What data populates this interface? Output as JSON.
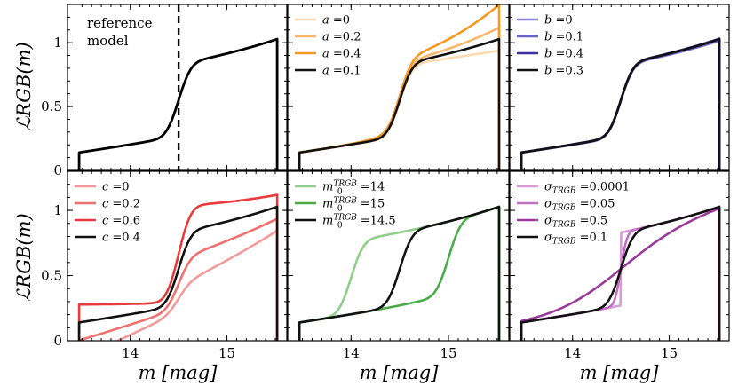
{
  "figure": {
    "ylabel": "ℒRGB(m)",
    "xlabel": "m [mag]"
  },
  "chart_data": [
    {
      "type": "line",
      "xlim": [
        13.35,
        15.62
      ],
      "ylim": [
        0,
        1.3
      ],
      "x_ticks": [
        14,
        15
      ],
      "y_ticks": [
        0,
        0.5,
        1
      ],
      "y_tick_labels": [
        "0",
        "0.5",
        "1"
      ],
      "annotation": {
        "text_lines": [
          "reference",
          "model"
        ]
      },
      "vline": {
        "x": 14.5,
        "style": "dashed",
        "color": "#000000"
      },
      "legend": null,
      "series": [
        {
          "params": {
            "a": 0.1,
            "b": 0.3,
            "c": 0.4,
            "m0": 14.5,
            "s": 0.1
          },
          "color": "#000000",
          "alpha": 1,
          "width": 2.8
        }
      ]
    },
    {
      "type": "line",
      "xlim": [
        13.35,
        15.62
      ],
      "ylim": [
        0,
        1.3
      ],
      "x_ticks": [
        14,
        15
      ],
      "y_ticks": [
        0,
        0.5,
        1
      ],
      "legend": {
        "position": "upper-left"
      },
      "series": [
        {
          "name": "a =0",
          "params": {
            "a": 0,
            "b": 0.3,
            "c": 0.4,
            "m0": 14.5,
            "s": 0.1
          },
          "color": "#f5b04a",
          "alpha": 0.45,
          "width": 2.6
        },
        {
          "name": "a =0.2",
          "params": {
            "a": 0.2,
            "b": 0.3,
            "c": 0.4,
            "m0": 14.5,
            "s": 0.1
          },
          "color": "#f5a03a",
          "alpha": 0.75,
          "width": 2.6
        },
        {
          "name": "a =0.4",
          "params": {
            "a": 0.4,
            "b": 0.3,
            "c": 0.4,
            "m0": 14.5,
            "s": 0.1
          },
          "color": "#f59a20",
          "alpha": 1,
          "width": 2.6
        },
        {
          "name": "a =0.1",
          "params": {
            "a": 0.1,
            "b": 0.3,
            "c": 0.4,
            "m0": 14.5,
            "s": 0.1
          },
          "color": "#111111",
          "alpha": 1,
          "width": 2.6
        }
      ]
    },
    {
      "type": "line",
      "xlim": [
        13.35,
        15.62
      ],
      "ylim": [
        0,
        1.3
      ],
      "x_ticks": [
        14,
        15
      ],
      "y_ticks": [
        0,
        0.5,
        1
      ],
      "legend": {
        "position": "upper-left"
      },
      "series": [
        {
          "name": "b =0",
          "params": {
            "a": 0.1,
            "b": 0,
            "c": 0.4,
            "m0": 14.5,
            "s": 0.1
          },
          "color": "#8a86d8",
          "alpha": 1,
          "width": 2.6
        },
        {
          "name": "b =0.1",
          "params": {
            "a": 0.1,
            "b": 0.1,
            "c": 0.4,
            "m0": 14.5,
            "s": 0.1
          },
          "color": "#6a64c4",
          "alpha": 1,
          "width": 2.6
        },
        {
          "name": "b =0.4",
          "params": {
            "a": 0.1,
            "b": 0.4,
            "c": 0.4,
            "m0": 14.5,
            "s": 0.1
          },
          "color": "#3a2f9e",
          "alpha": 1,
          "width": 2.6
        },
        {
          "name": "b =0.3",
          "params": {
            "a": 0.1,
            "b": 0.3,
            "c": 0.4,
            "m0": 14.5,
            "s": 0.1
          },
          "color": "#111111",
          "alpha": 1,
          "width": 2.6
        }
      ]
    },
    {
      "type": "line",
      "xlim": [
        13.35,
        15.62
      ],
      "ylim": [
        0,
        1.3
      ],
      "x_ticks": [
        14,
        15
      ],
      "x_tick_labels": [
        "14",
        "15"
      ],
      "y_ticks": [
        0,
        0.5,
        1
      ],
      "y_tick_labels": [
        "0",
        "0.5",
        "1"
      ],
      "legend": {
        "position": "upper-left"
      },
      "series": [
        {
          "name": "c =0",
          "params": {
            "a": 0.1,
            "b": 0.3,
            "c": 0,
            "m0": 14.5,
            "s": 0.1
          },
          "color": "#f59a9a",
          "alpha": 1,
          "width": 2.6
        },
        {
          "name": "c =0.2",
          "params": {
            "a": 0.1,
            "b": 0.3,
            "c": 0.2,
            "m0": 14.5,
            "s": 0.1
          },
          "color": "#f07070",
          "alpha": 1,
          "width": 2.6
        },
        {
          "name": "c =0.6",
          "params": {
            "a": 0.1,
            "b": 0.3,
            "c": 0.6,
            "m0": 14.5,
            "s": 0.1
          },
          "color": "#e83a3a",
          "alpha": 1,
          "width": 2.6
        },
        {
          "name": "c =0.4",
          "params": {
            "a": 0.1,
            "b": 0.3,
            "c": 0.4,
            "m0": 14.5,
            "s": 0.1
          },
          "color": "#111111",
          "alpha": 1,
          "width": 2.6
        }
      ]
    },
    {
      "type": "line",
      "xlim": [
        13.35,
        15.62
      ],
      "ylim": [
        0,
        1.3
      ],
      "x_ticks": [
        14,
        15
      ],
      "x_tick_labels": [
        "14",
        "15"
      ],
      "y_ticks": [
        0,
        0.5,
        1
      ],
      "legend": {
        "position": "upper-left"
      },
      "series": [
        {
          "name": "m0TRGB =14",
          "label_parts": {
            "sym": "m",
            "sub": "0",
            "sup": "TRGB",
            "val": "=14"
          },
          "params": {
            "a": 0.1,
            "b": 0.3,
            "c": 0.4,
            "m0": 14,
            "s": 0.1
          },
          "color": "#8fcf8a",
          "alpha": 1,
          "width": 2.6
        },
        {
          "name": "m0TRGB =15",
          "label_parts": {
            "sym": "m",
            "sub": "0",
            "sup": "TRGB",
            "val": "=15"
          },
          "params": {
            "a": 0.1,
            "b": 0.3,
            "c": 0.4,
            "m0": 15,
            "s": 0.1
          },
          "color": "#4aab4a",
          "alpha": 1,
          "width": 2.6
        },
        {
          "name": "m0TRGB =14.5",
          "label_parts": {
            "sym": "m",
            "sub": "0",
            "sup": "TRGB",
            "val": "=14.5"
          },
          "params": {
            "a": 0.1,
            "b": 0.3,
            "c": 0.4,
            "m0": 14.5,
            "s": 0.1
          },
          "color": "#111111",
          "alpha": 1,
          "width": 2.6
        }
      ]
    },
    {
      "type": "line",
      "xlim": [
        13.35,
        15.62
      ],
      "ylim": [
        0,
        1.3
      ],
      "x_ticks": [
        14,
        15
      ],
      "x_tick_labels": [
        "14",
        "15"
      ],
      "y_ticks": [
        0,
        0.5,
        1
      ],
      "legend": {
        "position": "upper-left"
      },
      "series": [
        {
          "name": "σTRGB =0.0001",
          "label_parts": {
            "sym": "σ",
            "sub": "TRGB",
            "val": "=0.0001"
          },
          "params": {
            "a": 0.1,
            "b": 0.3,
            "c": 0.4,
            "m0": 14.5,
            "s": 0.0001
          },
          "color": "#d89ad8",
          "alpha": 1,
          "width": 2.6
        },
        {
          "name": "σTRGB =0.05",
          "label_parts": {
            "sym": "σ",
            "sub": "TRGB",
            "val": "=0.05"
          },
          "params": {
            "a": 0.1,
            "b": 0.3,
            "c": 0.4,
            "m0": 14.5,
            "s": 0.05
          },
          "color": "#c070c0",
          "alpha": 1,
          "width": 2.6
        },
        {
          "name": "σTRGB =0.5",
          "label_parts": {
            "sym": "σ",
            "sub": "TRGB",
            "val": "=0.5"
          },
          "params": {
            "a": 0.1,
            "b": 0.3,
            "c": 0.4,
            "m0": 14.5,
            "s": 0.5
          },
          "color": "#9a3a9a",
          "alpha": 1,
          "width": 2.6
        },
        {
          "name": "σTRGB =0.1",
          "label_parts": {
            "sym": "σ",
            "sub": "TRGB",
            "val": "=0.1"
          },
          "params": {
            "a": 0.1,
            "b": 0.3,
            "c": 0.4,
            "m0": 14.5,
            "s": 0.1
          },
          "color": "#111111",
          "alpha": 1,
          "width": 2.6
        }
      ]
    }
  ]
}
